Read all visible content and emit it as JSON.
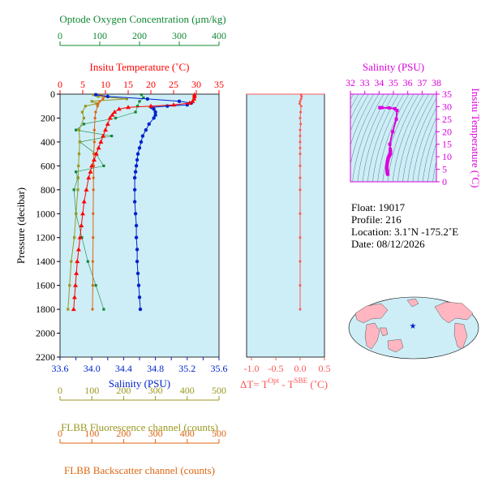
{
  "colors": {
    "oxygen": "#118833",
    "temperature": "#ff0000",
    "salinity": "#0022cc",
    "fluorescence": "#999922",
    "backscatter": "#dd6611",
    "deltaT": "#ff5555",
    "tsPanel": "#dd00dd",
    "plotBg": "#cdeef7"
  },
  "main_panel": {
    "ylabel": "Pressure (decibar)",
    "pressure_ticks": [
      "0",
      "200",
      "400",
      "600",
      "800",
      "1000",
      "1200",
      "1400",
      "1600",
      "1800",
      "2000",
      "2200"
    ],
    "oxygen": {
      "label": "Optode Oxygen Concentration (μm/kg)",
      "ticks": [
        "0",
        "100",
        "200",
        "300",
        "400"
      ]
    },
    "temperature": {
      "label": "Insitu Temperature (˚C)",
      "ticks": [
        "0",
        "5",
        "10",
        "15",
        "20",
        "25",
        "30",
        "35"
      ]
    },
    "salinity": {
      "label": "Salinity (PSU)",
      "ticks": [
        "33.6",
        "33.8",
        "34.0",
        "34.2",
        "34.4",
        "34.6",
        "34.8",
        "35.0",
        "35.2",
        "35.4",
        "35.6"
      ],
      "tick_labels_shown": [
        "33.6",
        "34.0",
        "34.4",
        "34.8",
        "35.2",
        "35.6"
      ]
    },
    "fluorescence": {
      "label": "FLBB Fluorescence channel (counts)",
      "ticks": [
        "0",
        "100",
        "200",
        "300",
        "400",
        "500"
      ]
    },
    "backscatter": {
      "label": "FLBB Backscatter channel (counts)",
      "ticks": [
        "0",
        "100",
        "200",
        "300",
        "400",
        "500"
      ]
    }
  },
  "delta_panel": {
    "xlabel": "ΔT= T",
    "xlabel_sup1": "Opt",
    "xlabel_mid": " - T",
    "xlabel_sup2": "SBE",
    "xlabel_end": " (˚C)",
    "ticks": [
      "-1.0",
      "-0.5",
      "0.0",
      "0.5"
    ]
  },
  "ts_panel": {
    "xlabel": "Salinity (PSU)",
    "ylabel": "Insitu Temperature (˚C)",
    "x_ticks": [
      "32",
      "33",
      "34",
      "35",
      "36",
      "37",
      "38"
    ],
    "y_ticks": [
      "0",
      "5",
      "10",
      "15",
      "20",
      "25",
      "30",
      "35"
    ]
  },
  "info": {
    "float": "Float:  19017",
    "profile": "Profile:  216",
    "location": "Location:  3.1˚N  -175.2˚E",
    "date": "Date:  08/12/2026"
  },
  "chart_data": [
    {
      "type": "line",
      "panel": "main",
      "x_axes": {
        "temperature": {
          "range": [
            0,
            35
          ],
          "unit": "˚C"
        },
        "salinity": {
          "range": [
            33.6,
            35.6
          ],
          "unit": "PSU"
        },
        "oxygen": {
          "range": [
            0,
            400
          ],
          "unit": "μm/kg"
        },
        "fluorescence": {
          "range": [
            0,
            500
          ],
          "unit": "counts"
        },
        "backscatter": {
          "range": [
            0,
            500
          ],
          "unit": "counts"
        }
      },
      "y_axis": {
        "label": "Pressure (decibar)",
        "range": [
          0,
          2200
        ],
        "reversed": true
      },
      "grid": false,
      "series": [
        {
          "name": "Insitu Temperature",
          "axis": "temperature",
          "pressure": [
            5,
            20,
            40,
            60,
            75,
            90,
            100,
            110,
            125,
            150,
            175,
            200,
            250,
            300,
            350,
            400,
            450,
            500,
            550,
            600,
            650,
            700,
            800,
            900,
            1000,
            1100,
            1200,
            1300,
            1400,
            1500,
            1600,
            1700,
            1800
          ],
          "values": [
            29.6,
            29.6,
            29.5,
            29.2,
            28.5,
            25.0,
            20.0,
            15.0,
            13.0,
            12.0,
            11.5,
            11.0,
            10.5,
            10.0,
            9.5,
            9.0,
            8.5,
            8.0,
            7.5,
            7.0,
            6.7,
            6.3,
            5.8,
            5.3,
            5.0,
            4.7,
            4.4,
            4.1,
            3.8,
            3.6,
            3.4,
            3.2,
            3.0
          ]
        },
        {
          "name": "Salinity",
          "axis": "salinity",
          "pressure": [
            5,
            20,
            40,
            60,
            75,
            90,
            100,
            110,
            125,
            150,
            175,
            200,
            250,
            300,
            350,
            400,
            450,
            500,
            550,
            600,
            650,
            700,
            800,
            900,
            1000,
            1100,
            1200,
            1300,
            1400,
            1500,
            1600,
            1700,
            1800
          ],
          "values": [
            34.05,
            34.2,
            34.7,
            35.1,
            35.25,
            35.2,
            34.95,
            34.75,
            34.78,
            34.8,
            34.8,
            34.78,
            34.72,
            34.68,
            34.64,
            34.62,
            34.6,
            34.58,
            34.57,
            34.56,
            34.55,
            34.54,
            34.54,
            34.54,
            34.55,
            34.56,
            34.56,
            34.57,
            34.57,
            34.58,
            34.59,
            34.6,
            34.61
          ]
        },
        {
          "name": "Optode Oxygen Concentration",
          "axis": "oxygen",
          "pressure": [
            5,
            30,
            60,
            100,
            150,
            200,
            250,
            300,
            350,
            400,
            500,
            600,
            650,
            700,
            800,
            1000,
            1200,
            1400,
            1600,
            1800
          ],
          "values": [
            205,
            210,
            200,
            195,
            190,
            140,
            60,
            40,
            130,
            50,
            90,
            110,
            40,
            45,
            35,
            40,
            55,
            70,
            90,
            110
          ]
        },
        {
          "name": "FLBB Fluorescence channel",
          "axis": "fluorescence",
          "pressure": [
            5,
            20,
            40,
            60,
            80,
            100,
            150,
            200,
            300,
            400,
            500,
            600,
            700,
            800,
            1000,
            1200,
            1400,
            1600,
            1800
          ],
          "values": [
            105,
            120,
            210,
            100,
            115,
            80,
            70,
            75,
            60,
            62,
            60,
            58,
            57,
            56,
            50,
            45,
            35,
            30,
            25
          ]
        },
        {
          "name": "FLBB Backscatter channel",
          "axis": "backscatter",
          "pressure": [
            5,
            20,
            40,
            60,
            80,
            100,
            150,
            200,
            300,
            400,
            500,
            600,
            700,
            800,
            1000,
            1200,
            1400,
            1600,
            1800
          ],
          "values": [
            130,
            140,
            135,
            125,
            120,
            118,
            112,
            110,
            108,
            108,
            106,
            106,
            105,
            105,
            104,
            104,
            103,
            103,
            102
          ]
        }
      ]
    },
    {
      "type": "line",
      "panel": "delta",
      "x_axis": {
        "range": [
          -1.1,
          0.5
        ]
      },
      "y_axis": {
        "range": [
          0,
          2200
        ],
        "reversed": true
      },
      "series": [
        {
          "name": "ΔT",
          "pressure": [
            5,
            20,
            40,
            60,
            80,
            100,
            150,
            200,
            250,
            300,
            350,
            400,
            450,
            500,
            600,
            700,
            800,
            1000,
            1200,
            1400,
            1600,
            1800
          ],
          "values": [
            0.02,
            0.03,
            0.02,
            0.0,
            -0.01,
            0.02,
            0.01,
            0.0,
            0.01,
            0.0,
            0.0,
            0.0,
            0.0,
            0.0,
            0.0,
            0.0,
            0.0,
            0.0,
            0.0,
            0.0,
            0.0,
            0.0
          ]
        }
      ]
    },
    {
      "type": "scatter",
      "panel": "ts",
      "x_axis": {
        "label": "Salinity (PSU)",
        "range": [
          32,
          38
        ]
      },
      "y_axis": {
        "label": "Insitu Temperature (˚C)",
        "range": [
          0,
          35
        ]
      },
      "series": [
        {
          "name": "T-S",
          "salinity": [
            34.05,
            34.2,
            34.7,
            35.1,
            35.25,
            35.2,
            34.95,
            34.75,
            34.78,
            34.8,
            34.8,
            34.78,
            34.72,
            34.68,
            34.64,
            34.62,
            34.6,
            34.58,
            34.57,
            34.56,
            34.55,
            34.54,
            34.54,
            34.54,
            34.55,
            34.56,
            34.56,
            34.57,
            34.57,
            34.58,
            34.59,
            34.6,
            34.61
          ],
          "temperature": [
            29.6,
            29.6,
            29.5,
            29.2,
            28.5,
            25.0,
            20.0,
            15.0,
            13.0,
            12.0,
            11.5,
            11.0,
            10.5,
            10.0,
            9.5,
            9.0,
            8.5,
            8.0,
            7.5,
            7.0,
            6.7,
            6.3,
            5.8,
            5.3,
            5.0,
            4.7,
            4.4,
            4.1,
            3.8,
            3.6,
            3.4,
            3.2,
            3.0
          ]
        }
      ]
    }
  ]
}
